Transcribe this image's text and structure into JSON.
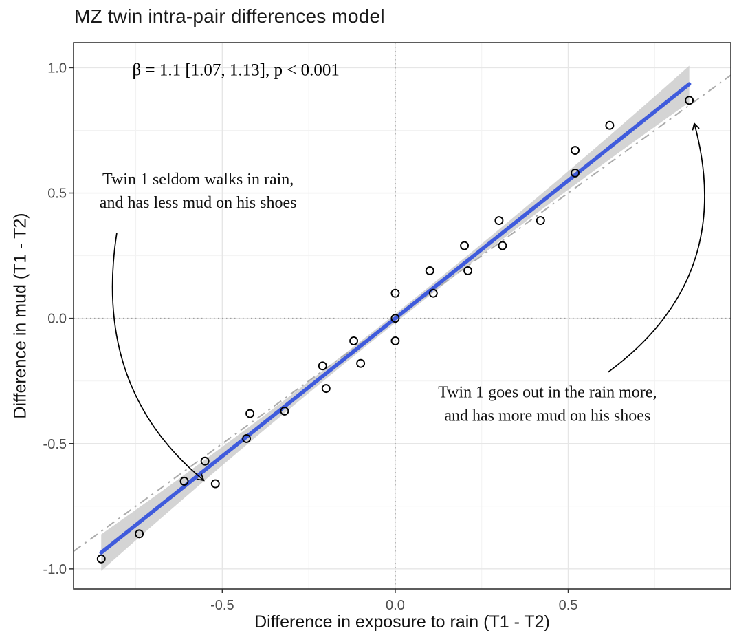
{
  "page": {
    "background": "#ffffff"
  },
  "chart_data": {
    "type": "scatter",
    "title": "MZ twin intra-pair differences model",
    "xlabel": "Difference in exposure to rain (T1 - T2)",
    "ylabel": "Difference in mud (T1 - T2)",
    "xlim": [
      -0.93,
      0.97
    ],
    "ylim": [
      -1.08,
      1.1
    ],
    "x_ticks": {
      "values": [
        -0.5,
        0,
        0.5
      ],
      "labels": [
        "-0.5",
        "0.0",
        "0.5"
      ]
    },
    "y_ticks": {
      "values": [
        -1,
        -0.5,
        0,
        0.5,
        1
      ],
      "labels": [
        "-1.0",
        "-0.5",
        "0.0",
        "0.5",
        "1.0"
      ]
    },
    "x_minor": [
      -0.75,
      -0.25,
      0.25,
      0.75
    ],
    "y_minor": [
      -0.75,
      -0.25,
      0.25,
      0.75
    ],
    "grid": {
      "on": true,
      "major_color": "#e6e6e6",
      "minor_color": "#f2f2f2"
    },
    "reference_lines": {
      "x": 0,
      "y": 0,
      "color": "#9e9e9e",
      "style": "dotted"
    },
    "identity_line": {
      "slope": 1,
      "intercept": 0,
      "color": "#ababab",
      "style": "dash-dot"
    },
    "regression": {
      "slope": 1.1,
      "intercept": 0,
      "x_start": -0.85,
      "x_end": 0.85,
      "color": "#3F5BDC",
      "ribbon_color": "#c9c9c9"
    },
    "point_style": {
      "stroke": "#000000",
      "fill": "none",
      "radius": 5.5
    },
    "points": [
      [
        -0.85,
        -0.96
      ],
      [
        -0.74,
        -0.86
      ],
      [
        -0.61,
        -0.65
      ],
      [
        -0.55,
        -0.57
      ],
      [
        -0.52,
        -0.66
      ],
      [
        -0.43,
        -0.48
      ],
      [
        -0.42,
        -0.38
      ],
      [
        -0.32,
        -0.37
      ],
      [
        -0.21,
        -0.19
      ],
      [
        -0.2,
        -0.28
      ],
      [
        -0.12,
        -0.09
      ],
      [
        -0.1,
        -0.18
      ],
      [
        0.0,
        0.1
      ],
      [
        0.0,
        0.0
      ],
      [
        0.0,
        -0.09
      ],
      [
        0.1,
        0.19
      ],
      [
        0.11,
        0.1
      ],
      [
        0.2,
        0.29
      ],
      [
        0.21,
        0.19
      ],
      [
        0.3,
        0.39
      ],
      [
        0.31,
        0.29
      ],
      [
        0.42,
        0.39
      ],
      [
        0.52,
        0.58
      ],
      [
        0.52,
        0.67
      ],
      [
        0.62,
        0.77
      ],
      [
        0.85,
        0.87
      ]
    ],
    "stats_label": {
      "text": "β = 1.1 [1.07, 1.13], p < 0.001",
      "x": -0.76,
      "y": 0.97
    },
    "annotations": [
      {
        "id": "seldom-note",
        "lines": [
          "Twin 1 seldom walks in rain,",
          "and has less mud on his shoes"
        ],
        "x": -0.57,
        "y": 0.51
      },
      {
        "id": "more-note",
        "lines": [
          "Twin 1 goes out in the rain more,",
          "and has more mud on his shoes"
        ],
        "x": 0.44,
        "y": -0.34
      }
    ],
    "arrows": [
      {
        "id": "arrow-to-low-point",
        "from": [
          -0.805,
          0.34
        ],
        "control": [
          -0.875,
          -0.28
        ],
        "to": [
          -0.555,
          -0.645
        ]
      },
      {
        "id": "arrow-to-high-point",
        "from": [
          0.615,
          -0.215
        ],
        "control": [
          0.985,
          0.16
        ],
        "to": [
          0.865,
          0.775
        ]
      }
    ],
    "axis": {
      "tick_color": "#333333",
      "tick_label_color": "#4d4d4d",
      "border_color": "#333333"
    }
  }
}
